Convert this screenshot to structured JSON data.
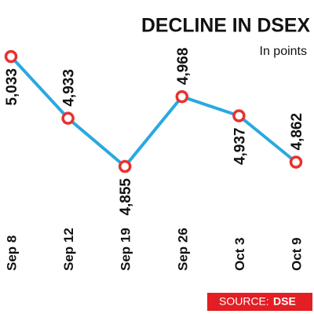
{
  "chart_data": {
    "type": "line",
    "title": "DECLINE IN DSEX",
    "subtitle": "In points",
    "categories": [
      "Sep 8",
      "Sep 12",
      "Sep 19",
      "Sep 26",
      "Oct 3",
      "Oct 9"
    ],
    "values": [
      5033,
      4933,
      4855,
      4968,
      4937,
      4862
    ],
    "value_labels": [
      "5,033",
      "4,933",
      "4,855",
      "4,968",
      "4,937",
      "4,862"
    ],
    "color": "#29a9e0",
    "marker_color": "#e8312f",
    "source_label": "SOURCE:",
    "source": "DSE",
    "source_color": "#e31e24"
  }
}
